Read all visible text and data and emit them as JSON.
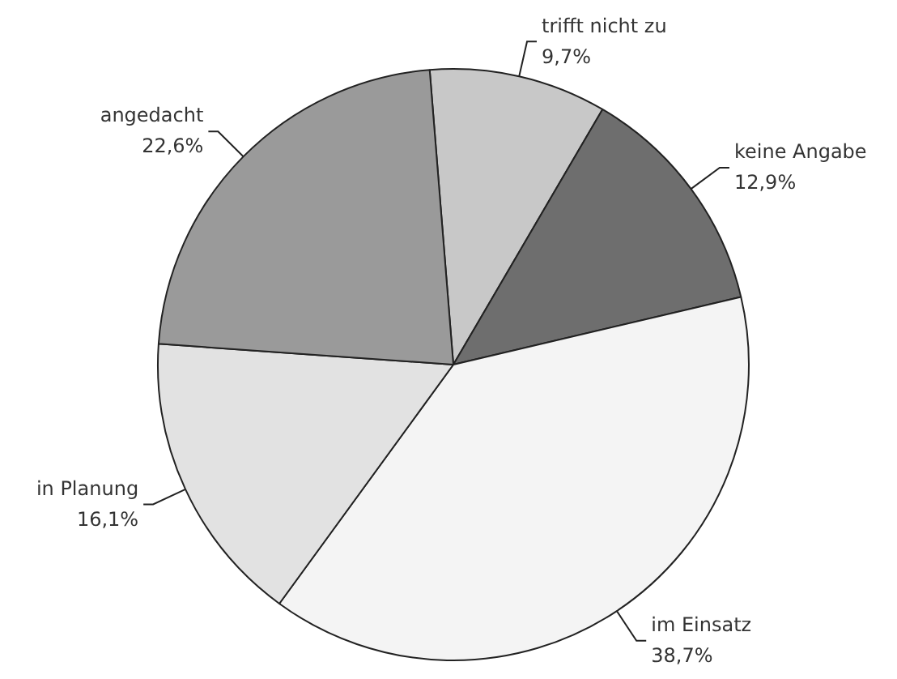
{
  "chart_data": {
    "type": "pie",
    "categories": [
      "trifft nicht zu",
      "keine Angabe",
      "im Einsatz",
      "in Planung",
      "angedacht"
    ],
    "values": [
      9.7,
      12.9,
      38.7,
      16.1,
      22.6
    ],
    "value_labels": [
      "9,7%",
      "12,9%",
      "38,7%",
      "16,1%",
      "22,6%"
    ],
    "colors": [
      "#c8c8c8",
      "#6e6e6e",
      "#f4f4f4",
      "#e2e2e2",
      "#9a9a9a"
    ],
    "legend": false
  }
}
